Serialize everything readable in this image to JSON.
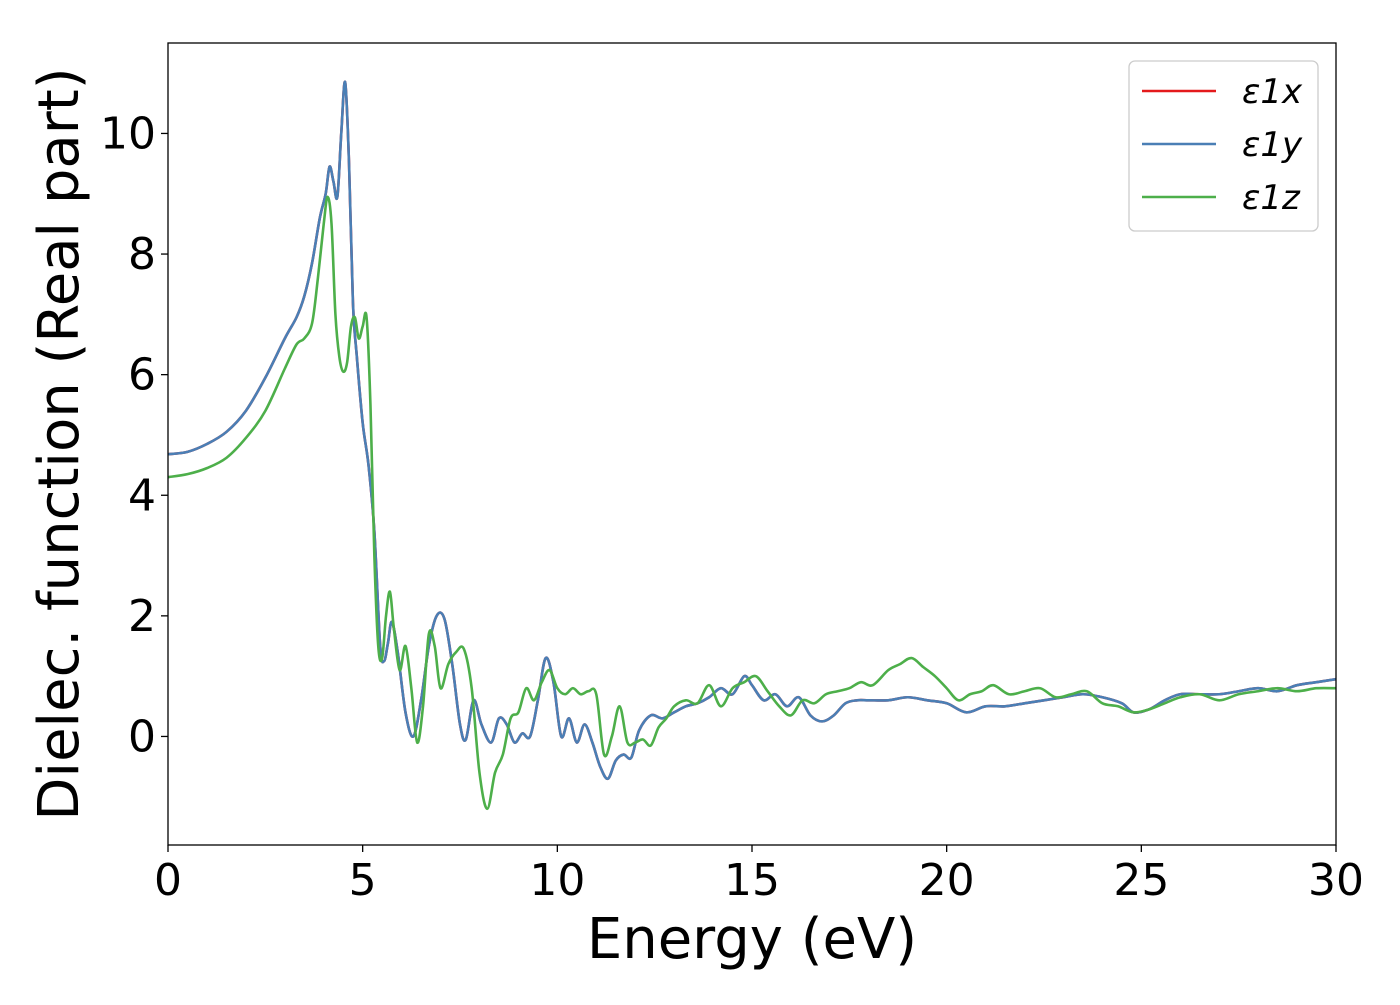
{
  "chart_data": {
    "type": "line",
    "title": "",
    "xlabel": "Energy (eV)",
    "ylabel": "Dielec. function (Real part)",
    "xlim": [
      0,
      30
    ],
    "ylim": [
      -1.8,
      11.5
    ],
    "xticks": [
      0,
      5,
      10,
      15,
      20,
      25,
      30
    ],
    "xtick_labels": [
      "0",
      "5",
      "10",
      "15",
      "20",
      "25",
      "30"
    ],
    "yticks": [
      0,
      2,
      4,
      6,
      8,
      10
    ],
    "ytick_labels": [
      "0",
      "2",
      "4",
      "6",
      "8",
      "10"
    ],
    "grid": false,
    "legend_position": "top-right",
    "series": [
      {
        "name": "ε1x",
        "color": "#e41a1c",
        "x": [
          0,
          0.5,
          1,
          1.5,
          2,
          2.5,
          3,
          3.3,
          3.5,
          3.7,
          3.9,
          4.05,
          4.15,
          4.25,
          4.35,
          4.45,
          4.55,
          4.65,
          4.75,
          4.85,
          5.0,
          5.15,
          5.3,
          5.45,
          5.55,
          5.65,
          5.75,
          5.9,
          6.1,
          6.3,
          6.5,
          6.7,
          6.9,
          7.1,
          7.3,
          7.5,
          7.65,
          7.85,
          8.05,
          8.3,
          8.5,
          8.7,
          8.9,
          9.1,
          9.3,
          9.5,
          9.7,
          9.9,
          10.1,
          10.3,
          10.5,
          10.7,
          10.9,
          11.1,
          11.3,
          11.5,
          11.7,
          11.9,
          12.1,
          12.4,
          12.7,
          13.0,
          13.3,
          13.6,
          13.9,
          14.2,
          14.5,
          14.8,
          15.0,
          15.3,
          15.6,
          15.9,
          16.2,
          16.5,
          16.8,
          17.1,
          17.4,
          17.7,
          18.0,
          18.5,
          19.0,
          19.5,
          20.0,
          20.5,
          21.0,
          21.5,
          22.0,
          22.5,
          23.0,
          23.5,
          24.0,
          24.5,
          24.8,
          25.2,
          25.6,
          26.0,
          26.5,
          27.0,
          27.5,
          28.0,
          28.5,
          29.0,
          29.5,
          30.0
        ],
        "values": [
          4.68,
          4.72,
          4.85,
          5.05,
          5.4,
          5.95,
          6.6,
          6.95,
          7.3,
          7.85,
          8.6,
          9.0,
          9.45,
          9.2,
          8.95,
          10.0,
          10.85,
          9.5,
          7.2,
          6.3,
          5.2,
          4.5,
          3.4,
          1.5,
          1.25,
          1.55,
          1.9,
          1.4,
          0.4,
          0.0,
          0.6,
          1.5,
          2.0,
          1.95,
          1.2,
          0.2,
          -0.05,
          0.6,
          0.2,
          -0.1,
          0.3,
          0.2,
          -0.1,
          0.05,
          0.0,
          0.6,
          1.3,
          0.9,
          0.0,
          0.3,
          -0.1,
          0.2,
          -0.1,
          -0.5,
          -0.7,
          -0.4,
          -0.3,
          -0.35,
          0.1,
          0.35,
          0.3,
          0.4,
          0.5,
          0.55,
          0.65,
          0.8,
          0.7,
          1.0,
          0.85,
          0.6,
          0.7,
          0.5,
          0.65,
          0.35,
          0.25,
          0.35,
          0.55,
          0.6,
          0.6,
          0.6,
          0.65,
          0.6,
          0.55,
          0.4,
          0.5,
          0.5,
          0.55,
          0.6,
          0.65,
          0.7,
          0.65,
          0.55,
          0.4,
          0.45,
          0.6,
          0.7,
          0.7,
          0.7,
          0.75,
          0.8,
          0.75,
          0.85,
          0.9,
          0.95
        ]
      },
      {
        "name": "ε1y",
        "color": "#4a7fb5",
        "x": [
          0,
          0.5,
          1,
          1.5,
          2,
          2.5,
          3,
          3.3,
          3.5,
          3.7,
          3.9,
          4.05,
          4.15,
          4.25,
          4.35,
          4.45,
          4.55,
          4.65,
          4.75,
          4.85,
          5.0,
          5.15,
          5.3,
          5.45,
          5.55,
          5.65,
          5.75,
          5.9,
          6.1,
          6.3,
          6.5,
          6.7,
          6.9,
          7.1,
          7.3,
          7.5,
          7.65,
          7.85,
          8.05,
          8.3,
          8.5,
          8.7,
          8.9,
          9.1,
          9.3,
          9.5,
          9.7,
          9.9,
          10.1,
          10.3,
          10.5,
          10.7,
          10.9,
          11.1,
          11.3,
          11.5,
          11.7,
          11.9,
          12.1,
          12.4,
          12.7,
          13.0,
          13.3,
          13.6,
          13.9,
          14.2,
          14.5,
          14.8,
          15.0,
          15.3,
          15.6,
          15.9,
          16.2,
          16.5,
          16.8,
          17.1,
          17.4,
          17.7,
          18.0,
          18.5,
          19.0,
          19.5,
          20.0,
          20.5,
          21.0,
          21.5,
          22.0,
          22.5,
          23.0,
          23.5,
          24.0,
          24.5,
          24.8,
          25.2,
          25.6,
          26.0,
          26.5,
          27.0,
          27.5,
          28.0,
          28.5,
          29.0,
          29.5,
          30.0
        ],
        "values": [
          4.68,
          4.72,
          4.85,
          5.05,
          5.4,
          5.95,
          6.6,
          6.95,
          7.3,
          7.85,
          8.6,
          9.0,
          9.45,
          9.2,
          8.95,
          10.0,
          10.85,
          9.5,
          7.2,
          6.3,
          5.2,
          4.5,
          3.4,
          1.5,
          1.25,
          1.55,
          1.9,
          1.4,
          0.4,
          0.0,
          0.6,
          1.5,
          2.0,
          1.95,
          1.2,
          0.2,
          -0.05,
          0.6,
          0.2,
          -0.1,
          0.3,
          0.2,
          -0.1,
          0.05,
          0.0,
          0.6,
          1.3,
          0.9,
          0.0,
          0.3,
          -0.1,
          0.2,
          -0.1,
          -0.5,
          -0.7,
          -0.4,
          -0.3,
          -0.35,
          0.1,
          0.35,
          0.3,
          0.4,
          0.5,
          0.55,
          0.65,
          0.8,
          0.7,
          1.0,
          0.85,
          0.6,
          0.7,
          0.5,
          0.65,
          0.35,
          0.25,
          0.35,
          0.55,
          0.6,
          0.6,
          0.6,
          0.65,
          0.6,
          0.55,
          0.4,
          0.5,
          0.5,
          0.55,
          0.6,
          0.65,
          0.7,
          0.65,
          0.55,
          0.4,
          0.45,
          0.6,
          0.7,
          0.7,
          0.7,
          0.75,
          0.8,
          0.75,
          0.85,
          0.9,
          0.95
        ]
      },
      {
        "name": "ε1z",
        "color": "#4daf4a",
        "x": [
          0,
          0.5,
          1,
          1.5,
          2,
          2.5,
          3,
          3.3,
          3.5,
          3.7,
          3.85,
          4.0,
          4.1,
          4.2,
          4.3,
          4.4,
          4.5,
          4.6,
          4.7,
          4.8,
          4.9,
          5.0,
          5.1,
          5.2,
          5.3,
          5.4,
          5.5,
          5.6,
          5.7,
          5.8,
          5.95,
          6.1,
          6.25,
          6.4,
          6.55,
          6.7,
          6.85,
          7.0,
          7.2,
          7.4,
          7.6,
          7.8,
          8.0,
          8.2,
          8.4,
          8.6,
          8.8,
          9.0,
          9.2,
          9.4,
          9.6,
          9.8,
          10.0,
          10.2,
          10.4,
          10.6,
          10.8,
          11.0,
          11.2,
          11.4,
          11.6,
          11.8,
          12.0,
          12.2,
          12.4,
          12.6,
          12.8,
          13.0,
          13.3,
          13.6,
          13.9,
          14.2,
          14.5,
          14.8,
          15.1,
          15.4,
          15.7,
          16.0,
          16.3,
          16.6,
          16.9,
          17.2,
          17.5,
          17.8,
          18.1,
          18.5,
          18.8,
          19.1,
          19.4,
          19.7,
          20.0,
          20.3,
          20.6,
          20.9,
          21.2,
          21.6,
          22.0,
          22.4,
          22.8,
          23.2,
          23.6,
          24.0,
          24.4,
          24.8,
          25.2,
          25.6,
          26.0,
          26.5,
          27.0,
          27.5,
          28.0,
          28.5,
          29.0,
          29.5,
          30.0
        ],
        "values": [
          4.3,
          4.35,
          4.45,
          4.62,
          4.95,
          5.4,
          6.1,
          6.5,
          6.6,
          6.85,
          7.6,
          8.5,
          8.95,
          8.5,
          7.0,
          6.3,
          6.05,
          6.2,
          6.8,
          6.95,
          6.6,
          6.8,
          6.95,
          5.5,
          3.0,
          1.5,
          1.3,
          2.0,
          2.4,
          1.8,
          1.1,
          1.5,
          0.8,
          -0.1,
          0.5,
          1.7,
          1.5,
          0.8,
          1.2,
          1.4,
          1.45,
          0.8,
          -0.6,
          -1.2,
          -0.6,
          -0.3,
          0.3,
          0.4,
          0.8,
          0.6,
          0.9,
          1.1,
          0.8,
          0.7,
          0.8,
          0.7,
          0.75,
          0.7,
          -0.3,
          0.0,
          0.5,
          -0.1,
          -0.1,
          -0.05,
          -0.15,
          0.15,
          0.3,
          0.5,
          0.6,
          0.55,
          0.85,
          0.5,
          0.8,
          0.9,
          1.0,
          0.75,
          0.5,
          0.35,
          0.6,
          0.55,
          0.7,
          0.75,
          0.8,
          0.9,
          0.85,
          1.1,
          1.2,
          1.3,
          1.15,
          1.0,
          0.8,
          0.6,
          0.7,
          0.75,
          0.85,
          0.7,
          0.75,
          0.8,
          0.65,
          0.7,
          0.75,
          0.55,
          0.5,
          0.4,
          0.45,
          0.55,
          0.65,
          0.7,
          0.6,
          0.7,
          0.75,
          0.8,
          0.75,
          0.8,
          0.8
        ]
      }
    ]
  }
}
